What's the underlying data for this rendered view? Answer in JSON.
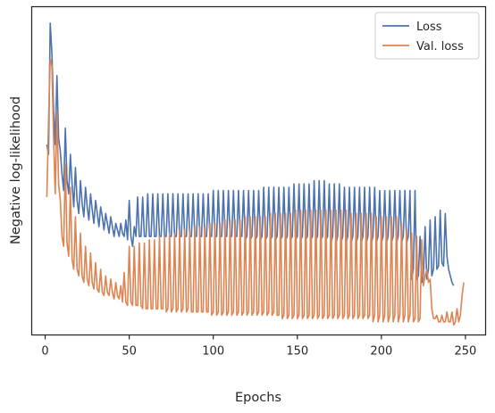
{
  "chart_data": {
    "type": "line",
    "title": "",
    "xlabel": "Epochs",
    "ylabel": "Negative log-likelihood",
    "xlim": [
      -8,
      262
    ],
    "ylim": [
      0,
      1
    ],
    "y_tick_labels_shown": false,
    "x_ticks": [
      0,
      50,
      100,
      150,
      200,
      250
    ],
    "x_tick_labels": [
      "0",
      "50",
      "100",
      "150",
      "200",
      "250"
    ],
    "grid": false,
    "legend_position": "top-right",
    "series": [
      {
        "name": "Loss",
        "color": "#4c72b0",
        "x_start": 1,
        "x_step": 1,
        "values": [
          0.58,
          0.55,
          0.95,
          0.86,
          0.69,
          0.58,
          0.79,
          0.6,
          0.56,
          0.49,
          0.44,
          0.63,
          0.47,
          0.43,
          0.55,
          0.46,
          0.39,
          0.51,
          0.41,
          0.37,
          0.47,
          0.4,
          0.36,
          0.45,
          0.39,
          0.35,
          0.43,
          0.38,
          0.34,
          0.41,
          0.37,
          0.33,
          0.39,
          0.36,
          0.32,
          0.37,
          0.34,
          0.31,
          0.36,
          0.33,
          0.3,
          0.34,
          0.32,
          0.3,
          0.34,
          0.31,
          0.3,
          0.35,
          0.29,
          0.41,
          0.3,
          0.27,
          0.33,
          0.3,
          0.42,
          0.3,
          0.3,
          0.42,
          0.3,
          0.3,
          0.43,
          0.3,
          0.3,
          0.43,
          0.3,
          0.3,
          0.43,
          0.3,
          0.3,
          0.43,
          0.3,
          0.3,
          0.43,
          0.3,
          0.3,
          0.43,
          0.3,
          0.3,
          0.43,
          0.3,
          0.3,
          0.43,
          0.3,
          0.3,
          0.43,
          0.3,
          0.3,
          0.43,
          0.3,
          0.3,
          0.43,
          0.3,
          0.3,
          0.43,
          0.3,
          0.3,
          0.43,
          0.3,
          0.3,
          0.44,
          0.3,
          0.3,
          0.44,
          0.3,
          0.3,
          0.44,
          0.3,
          0.3,
          0.44,
          0.3,
          0.3,
          0.44,
          0.3,
          0.3,
          0.44,
          0.3,
          0.3,
          0.44,
          0.29,
          0.3,
          0.44,
          0.29,
          0.3,
          0.44,
          0.29,
          0.3,
          0.44,
          0.29,
          0.3,
          0.45,
          0.29,
          0.3,
          0.45,
          0.29,
          0.3,
          0.45,
          0.29,
          0.3,
          0.45,
          0.29,
          0.3,
          0.45,
          0.29,
          0.3,
          0.45,
          0.29,
          0.3,
          0.46,
          0.29,
          0.3,
          0.46,
          0.29,
          0.3,
          0.46,
          0.29,
          0.3,
          0.46,
          0.29,
          0.3,
          0.47,
          0.29,
          0.3,
          0.47,
          0.29,
          0.3,
          0.47,
          0.29,
          0.3,
          0.46,
          0.28,
          0.3,
          0.46,
          0.28,
          0.3,
          0.46,
          0.28,
          0.3,
          0.45,
          0.28,
          0.3,
          0.45,
          0.28,
          0.3,
          0.45,
          0.28,
          0.3,
          0.45,
          0.28,
          0.3,
          0.45,
          0.28,
          0.3,
          0.45,
          0.28,
          0.3,
          0.45,
          0.28,
          0.3,
          0.44,
          0.28,
          0.3,
          0.44,
          0.28,
          0.3,
          0.44,
          0.28,
          0.3,
          0.44,
          0.28,
          0.3,
          0.44,
          0.28,
          0.3,
          0.44,
          0.28,
          0.3,
          0.44,
          0.17,
          0.2,
          0.44,
          0.17,
          0.18,
          0.3,
          0.16,
          0.18,
          0.33,
          0.17,
          0.2,
          0.35,
          0.18,
          0.2,
          0.36,
          0.2,
          0.21,
          0.38,
          0.22,
          0.21,
          0.37,
          0.24,
          0.2,
          0.18,
          0.16,
          0.15
        ],
        "note": "values approximate, normalized to plot height (0 = bottom, 1 = top)"
      },
      {
        "name": "Val. loss",
        "color": "#dd8452",
        "x_start": 1,
        "x_step": 1,
        "values": [
          0.42,
          0.65,
          0.84,
          0.82,
          0.6,
          0.43,
          0.68,
          0.46,
          0.41,
          0.3,
          0.27,
          0.52,
          0.28,
          0.24,
          0.45,
          0.23,
          0.2,
          0.36,
          0.2,
          0.18,
          0.31,
          0.18,
          0.16,
          0.27,
          0.17,
          0.15,
          0.25,
          0.16,
          0.14,
          0.22,
          0.14,
          0.13,
          0.2,
          0.13,
          0.12,
          0.18,
          0.13,
          0.12,
          0.17,
          0.13,
          0.11,
          0.16,
          0.12,
          0.11,
          0.15,
          0.1,
          0.19,
          0.1,
          0.09,
          0.27,
          0.1,
          0.09,
          0.27,
          0.09,
          0.09,
          0.28,
          0.09,
          0.08,
          0.28,
          0.08,
          0.08,
          0.29,
          0.08,
          0.08,
          0.29,
          0.08,
          0.08,
          0.3,
          0.08,
          0.08,
          0.3,
          0.07,
          0.08,
          0.31,
          0.07,
          0.08,
          0.31,
          0.07,
          0.08,
          0.32,
          0.07,
          0.08,
          0.32,
          0.07,
          0.08,
          0.32,
          0.07,
          0.07,
          0.33,
          0.07,
          0.07,
          0.33,
          0.07,
          0.07,
          0.33,
          0.07,
          0.07,
          0.34,
          0.06,
          0.07,
          0.34,
          0.06,
          0.07,
          0.34,
          0.06,
          0.07,
          0.35,
          0.06,
          0.07,
          0.35,
          0.06,
          0.07,
          0.35,
          0.06,
          0.07,
          0.35,
          0.06,
          0.07,
          0.36,
          0.06,
          0.07,
          0.36,
          0.06,
          0.07,
          0.36,
          0.06,
          0.07,
          0.36,
          0.06,
          0.07,
          0.36,
          0.06,
          0.07,
          0.37,
          0.06,
          0.07,
          0.37,
          0.06,
          0.06,
          0.37,
          0.05,
          0.06,
          0.37,
          0.05,
          0.06,
          0.37,
          0.05,
          0.06,
          0.38,
          0.05,
          0.06,
          0.38,
          0.05,
          0.06,
          0.38,
          0.05,
          0.06,
          0.38,
          0.05,
          0.06,
          0.38,
          0.05,
          0.06,
          0.38,
          0.05,
          0.06,
          0.38,
          0.05,
          0.06,
          0.38,
          0.05,
          0.06,
          0.38,
          0.05,
          0.06,
          0.38,
          0.05,
          0.06,
          0.38,
          0.05,
          0.06,
          0.37,
          0.05,
          0.06,
          0.37,
          0.05,
          0.06,
          0.37,
          0.05,
          0.06,
          0.37,
          0.05,
          0.06,
          0.37,
          0.04,
          0.06,
          0.36,
          0.04,
          0.06,
          0.36,
          0.04,
          0.06,
          0.36,
          0.04,
          0.06,
          0.36,
          0.04,
          0.06,
          0.36,
          0.04,
          0.06,
          0.34,
          0.04,
          0.06,
          0.32,
          0.04,
          0.06,
          0.31,
          0.04,
          0.05,
          0.3,
          0.04,
          0.05,
          0.29,
          0.15,
          0.18,
          0.2,
          0.16,
          0.17,
          0.08,
          0.05,
          0.05,
          0.06,
          0.04,
          0.04,
          0.06,
          0.04,
          0.04,
          0.07,
          0.04,
          0.04,
          0.07,
          0.03,
          0.04,
          0.08,
          0.04,
          0.06,
          0.12,
          0.16
        ],
        "note": "values approximate, normalized to plot height (0 = bottom, 1 = top)"
      }
    ]
  }
}
